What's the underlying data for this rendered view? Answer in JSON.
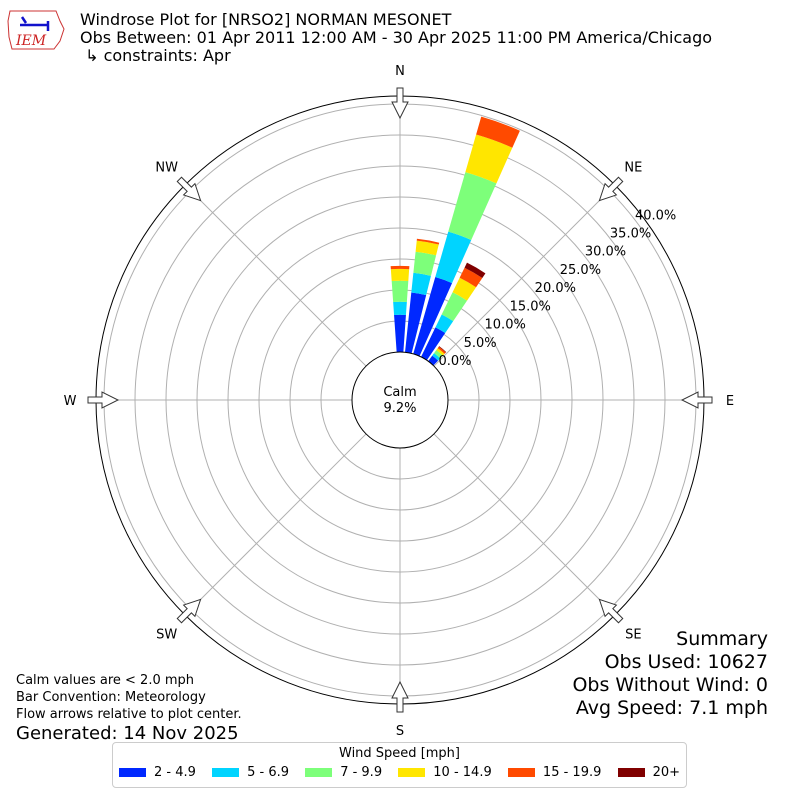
{
  "header": {
    "title_line1": "Windrose Plot for [NRSO2] NORMAN MESONET",
    "title_line2": "Obs Between: 01 Apr 2011 12:00 AM - 30 Apr 2025 11:00 PM America/Chicago",
    "title_line3": " ↳ constraints: Apr",
    "logo_text": "IEM"
  },
  "notes": {
    "calm": "Calm values are < 2.0 mph",
    "convention": "Bar Convention: Meteorology",
    "flow": "Flow arrows relative to plot center.",
    "generated": "Generated: 14 Nov 2025"
  },
  "summary": {
    "title": "Summary",
    "obs_used": "Obs Used: 10627",
    "obs_without_wind": "Obs Without Wind: 0",
    "avg_speed": "Avg Speed: 7.1 mph"
  },
  "chart_data": {
    "type": "windrose",
    "calm_label": "Calm",
    "calm_value": "9.2%",
    "directions": [
      "N",
      "NE",
      "E",
      "SE",
      "S",
      "SW",
      "W",
      "NW"
    ],
    "radial_ticks": [
      "0.0%",
      "5.0%",
      "10.0%",
      "15.0%",
      "20.0%",
      "25.0%",
      "30.0%",
      "35.0%",
      "40.0%"
    ],
    "radial_max": 41.3,
    "legend_title": "Wind Speed [mph]",
    "bins": [
      {
        "label": "2 - 4.9",
        "color": "#0028ff"
      },
      {
        "label": "5 - 6.9",
        "color": "#00d4ff"
      },
      {
        "label": "7 - 9.9",
        "color": "#7dff7a"
      },
      {
        "label": "10 - 14.9",
        "color": "#ffe600"
      },
      {
        "label": "15 - 19.9",
        "color": "#ff4a00"
      },
      {
        "label": "20+",
        "color": "#800000"
      }
    ],
    "sector_width_deg": 10,
    "sectors": [
      {
        "direction_deg": 0,
        "cumulative_pct": [
          6.0,
          8.1,
          11.5,
          13.4,
          13.9,
          13.9
        ]
      },
      {
        "direction_deg": 10,
        "cumulative_pct": [
          9.7,
          12.9,
          16.3,
          18.1,
          18.4,
          18.4
        ]
      },
      {
        "direction_deg": 20,
        "cumulative_pct": [
          12.9,
          20.5,
          30.5,
          36.8,
          39.8,
          39.8
        ]
      },
      {
        "direction_deg": 30,
        "cumulative_pct": [
          5.3,
          7.6,
          11.6,
          14.2,
          16.0,
          16.9
        ]
      },
      {
        "direction_deg": 40,
        "cumulative_pct": [
          1.1,
          1.6,
          2.2,
          2.6,
          2.9,
          3.0
        ]
      }
    ]
  }
}
